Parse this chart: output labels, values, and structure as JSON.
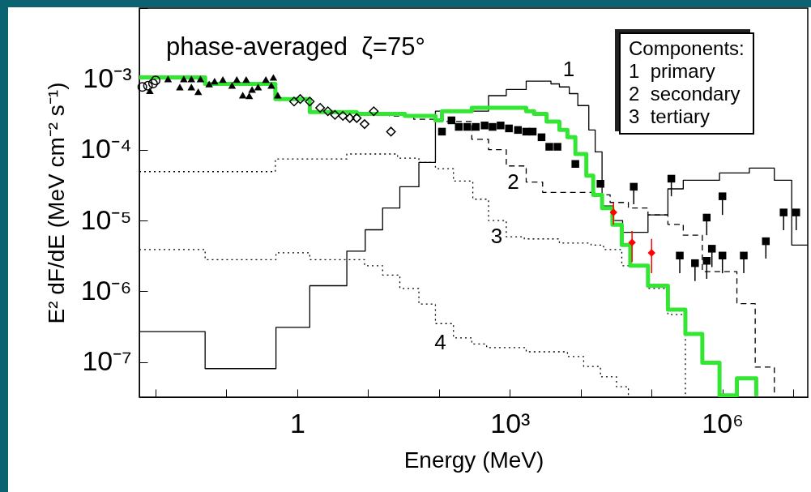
{
  "chart_data": {
    "type": "step",
    "title": "phase-averaged  ζ=75°",
    "xlabel": "Energy (MeV)",
    "ylabel": "E² dF/dE (MeV cm⁻² s⁻¹)",
    "log": "xy",
    "grid": false,
    "xlim": [
      0.0059,
      16000000
    ],
    "ylim": [
      3.2e-08,
      0.01
    ],
    "xticks": [
      {
        "value": 0.01,
        "label": null
      },
      {
        "value": 0.1,
        "label": null
      },
      1,
      {
        "value": 10,
        "label": null
      },
      {
        "value": 100,
        "label": null
      },
      {
        "value": 1000,
        "label": "10³"
      },
      {
        "value": 10000,
        "label": null
      },
      {
        "value": 100000,
        "label": null
      },
      {
        "value": 1000000,
        "label": "10⁶"
      },
      {
        "value": 10000000,
        "label": null
      }
    ],
    "yticks": [
      {
        "value": 1e-07,
        "label": "10⁻⁷"
      },
      {
        "value": 1e-06,
        "label": "10⁻⁶"
      },
      {
        "value": 1e-05,
        "label": "10⁻⁵"
      },
      {
        "value": 0.0001,
        "label": "10⁻⁴"
      },
      {
        "value": 0.001,
        "label": "10⁻³"
      },
      {
        "value": 0.01,
        "label": null
      }
    ],
    "series": [
      {
        "color": "#000000",
        "line_style": "solid",
        "x": [
          0.0059,
          0.05,
          0.5,
          1.5,
          5.0,
          9.1,
          16,
          28,
          52,
          89,
          500,
          890,
          1700,
          3800,
          5000,
          6900,
          9100,
          13000,
          16000,
          20000,
          29000,
          39000,
          89000,
          170000,
          280000,
          910000,
          2400000,
          5400000,
          9500000,
          16000000
        ],
        "values": [
          2.7e-07,
          8.1e-08,
          3.1e-07,
          1.2e-06,
          3.7e-06,
          7.4e-06,
          1.5e-05,
          3e-05,
          6.6e-05,
          0.00035,
          0.00058,
          0.00071,
          0.00093,
          0.00085,
          0.00077,
          0.00062,
          0.00042,
          0.00019,
          9.3e-05,
          1.6e-05,
          1e-05,
          6.8e-06,
          1.2e-05,
          2.8e-05,
          3.7e-05,
          4.7e-05,
          5.5e-05,
          3.7e-05,
          4.5e-06,
          4.5e-06
        ]
      },
      {
        "color": "#000000",
        "line_style": "dashed",
        "x": [
          6.9,
          20,
          44,
          89,
          290,
          500,
          890,
          1700,
          2900,
          16000,
          26000,
          47000,
          89000,
          170000,
          280000,
          520000,
          1600000,
          2900000,
          5400000
        ],
        "values": [
          0.00032,
          0.0003,
          0.00027,
          0.00025,
          0.00014,
          0.0001,
          5.9e-05,
          3.5e-05,
          2.5e-05,
          2.3e-05,
          1.8e-05,
          1.5e-05,
          1.2e-05,
          8.8e-06,
          6.2e-06,
          1.9e-06,
          6.7e-07,
          8.5e-08,
          3.3e-08
        ]
      },
      {
        "color": "#000000",
        "line_style": "dotted",
        "x": [
          0.0059,
          0.49,
          5.0,
          26,
          52,
          89,
          160,
          300,
          500,
          890,
          1600,
          5000,
          14000,
          21000,
          38000,
          89000,
          170000,
          300000
        ],
        "values": [
          4.9e-05,
          7.4e-05,
          8.7e-05,
          7.6e-05,
          6.6e-05,
          5.4e-05,
          3.6e-05,
          2e-05,
          1e-05,
          5.9e-06,
          5.5e-06,
          4.8e-06,
          4.5e-06,
          3.9e-06,
          2.3e-06,
          1.1e-06,
          4.7e-07,
          3.3e-08
        ]
      },
      {
        "color": "#000000",
        "line_style": "dotted",
        "x": [
          0.0059,
          0.05,
          0.5,
          1.5,
          8.9,
          16,
          28,
          52,
          89,
          160,
          290,
          470,
          1700,
          6500,
          11000,
          19000,
          32000,
          47000
        ],
        "values": [
          3.9e-06,
          2.8e-06,
          3.5e-06,
          2.8e-06,
          2.3e-06,
          1.7e-06,
          1.1e-06,
          6.6e-07,
          3.5e-07,
          2.2e-07,
          1.8e-07,
          1.6e-07,
          1.4e-07,
          1.2e-07,
          8.7e-08,
          6.2e-08,
          4.5e-08,
          3.3e-08
        ]
      },
      {
        "color": "#33e633",
        "x": [
          0.0059,
          0.05,
          0.49,
          1.5,
          6.9,
          33,
          89,
          110,
          290,
          1700,
          2200,
          3300,
          5000,
          6500,
          8400,
          12000,
          15000,
          20000,
          28000,
          38000,
          50000,
          89000,
          170000,
          300000,
          520000,
          910000,
          1600000,
          3000000
        ],
        "values": [
          0.00105,
          0.00085,
          0.00052,
          0.00034,
          0.00032,
          0.0003,
          0.00026,
          0.00035,
          0.00039,
          0.00035,
          0.00032,
          0.00025,
          0.00019,
          0.00015,
          8.7e-05,
          4.3e-05,
          2.3e-05,
          1.5e-05,
          8.7e-06,
          4.5e-06,
          2.3e-06,
          1.2e-06,
          5.5e-07,
          2.5e-07,
          9.8e-08,
          3.4e-08,
          5.9e-08,
          3.3e-08
        ]
      },
      {
        "type": "scatter",
        "marker": "circle",
        "color": "#000000",
        "x": [
          0.0065,
          0.0078,
          0.0092,
          0.01
        ],
        "values": [
          0.00077,
          0.0008,
          0.00086,
          0.00095
        ]
      },
      {
        "type": "scatter",
        "marker": "triangle",
        "color": "#000000",
        "x": [
          0.015,
          0.025,
          0.032,
          0.043,
          0.068,
          0.089,
          0.14,
          0.17,
          0.23,
          0.0083,
          0.19,
          0.28,
          0.36,
          0.46,
          0.53,
          0.022,
          0.032,
          0.04,
          0.057,
          0.12,
          0.21,
          0.43
        ],
        "values": [
          0.001,
          0.001,
          0.001,
          0.001,
          0.00093,
          0.00098,
          0.00098,
          0.00059,
          0.00071,
          0.00068,
          0.00098,
          0.00077,
          0.00098,
          0.00105,
          0.00059,
          0.00077,
          0.00077,
          0.00066,
          0.00085,
          0.00081,
          0.00058,
          0.00081
        ]
      },
      {
        "type": "scatter",
        "marker": "diamond",
        "color": "#000000",
        "x": [
          0.9,
          1.1,
          1.5,
          2.1,
          2.7,
          3.4,
          4.4,
          5.5,
          6.9,
          8.9,
          12,
          21
        ],
        "values": [
          0.00048,
          0.00052,
          0.00048,
          0.00039,
          0.00035,
          0.00031,
          0.0003,
          0.00028,
          0.00028,
          0.00023,
          0.00035,
          0.00018
        ]
      },
      {
        "type": "scatter",
        "marker": "square",
        "color": "#000000",
        "x": [
          110,
          150,
          190,
          250,
          330,
          440,
          570,
          740,
          970,
          1300,
          1700,
          2100,
          2800,
          3600,
          4700,
          8400,
          19000
        ],
        "values": [
          0.00018,
          0.00026,
          0.00021,
          0.00021,
          0.00021,
          0.00022,
          0.00021,
          0.00022,
          0.0002,
          0.00019,
          0.00018,
          0.00018,
          0.00015,
          0.00011,
          0.00011,
          6.3e-05,
          3.3e-05
        ]
      },
      {
        "type": "scatter",
        "marker": "diamond",
        "color": "#ff0000",
        "x": [
          29000,
          53000,
          100000
        ],
        "values": [
          1.3e-05,
          4.9e-06,
          3.5e-06
        ],
        "errors": [
          [
            8.7e-06,
            1.8e-05
          ],
          [
            2.6e-06,
            7.1e-06
          ],
          [
            1.8e-06,
            5.5e-06
          ]
        ]
      },
      {
        "type": "scatter",
        "marker": "square",
        "color": "#000000",
        "x": [
          56000,
          190000,
          250000,
          410000,
          600000,
          600000,
          710000,
          1000000,
          1000000,
          2000000,
          4100000,
          7300000,
          11000000
        ],
        "values": [
          3e-05,
          3.9e-05,
          3.2e-06,
          2.5e-06,
          1.1e-05,
          2.7e-06,
          4e-06,
          2.2e-05,
          3.2e-06,
          3.2e-06,
          5.1e-06,
          1.3e-05,
          1.3e-05
        ],
        "errors": [
          [
            1.7e-05,
            3e-05
          ],
          [
            2.2e-05,
            3.9e-05
          ],
          [
            1.8e-06,
            3.2e-06
          ],
          [
            1.4e-06,
            2.5e-06
          ],
          [
            6.2e-06,
            1.1e-05
          ],
          [
            1.5e-06,
            2.7e-06
          ],
          [
            2.2e-06,
            4e-06
          ],
          [
            1.2e-05,
            2.2e-05
          ],
          [
            1.8e-06,
            3.2e-06
          ],
          [
            1.8e-06,
            3.2e-06
          ],
          [
            2.9e-06,
            5.1e-06
          ],
          [
            7.3e-06,
            1.3e-05
          ],
          [
            7.3e-06,
            1.3e-05
          ]
        ]
      }
    ],
    "annotations": [
      {
        "text": "1",
        "x": 3800,
        "y": 0.00085
      },
      {
        "text": "2",
        "x": 1700,
        "y": 3.5e-05
      },
      {
        "text": "3",
        "x": 500,
        "y": 1e-05
      },
      {
        "text": "4",
        "x": 89,
        "y": 3.5e-07
      },
      "Components:",
      "1  primary",
      "2  secondary",
      "3  tertiary"
    ]
  }
}
